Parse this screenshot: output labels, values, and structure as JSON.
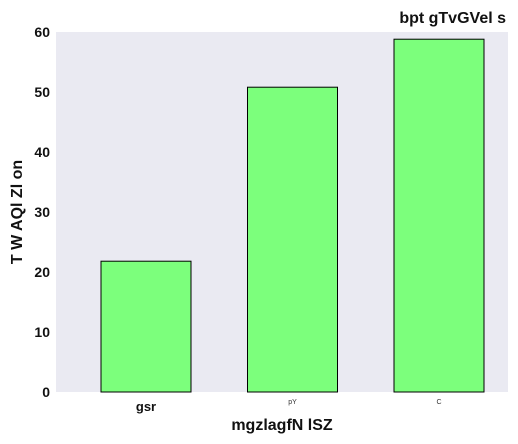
{
  "chart_data": {
    "type": "bar",
    "title": "bpt  gTvGVel s",
    "xlabel": "mgzlagfN lSZ",
    "ylabel": "T  W AQl Zl on",
    "categories": [
      "gsr",
      "pY",
      "C"
    ],
    "values": [
      21.8,
      50.8,
      58.8
    ],
    "ylim": [
      0,
      60
    ],
    "yticks": [
      0,
      10,
      20,
      30,
      40,
      50,
      60
    ],
    "grid": false,
    "colors": {
      "bar_fill": "#7cff7c",
      "bar_edge": "#000000",
      "plot_background": "#eaeaf2"
    }
  }
}
